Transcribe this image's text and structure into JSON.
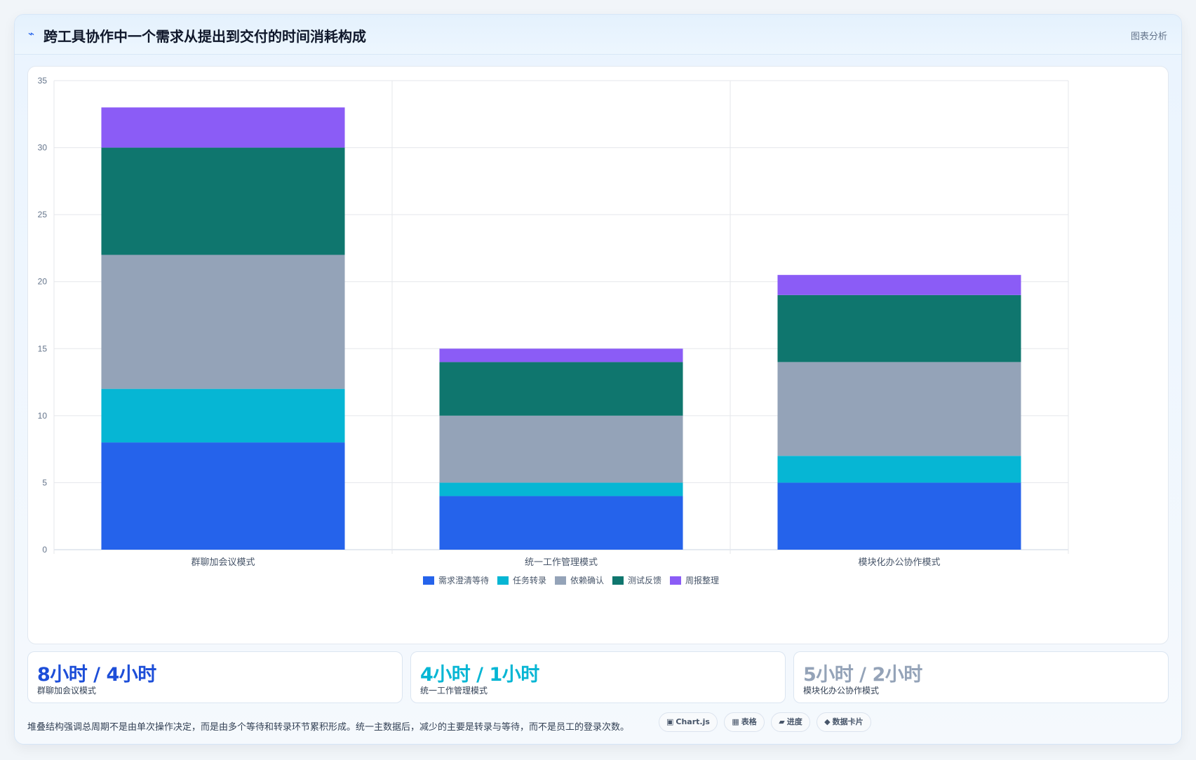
{
  "header": {
    "icon": "lightning-icon",
    "title": "跨工具协作中一个需求从提出到交付的时间消耗构成",
    "tag": "图表分析"
  },
  "chart_data": {
    "type": "bar",
    "stacked": true,
    "categories": [
      "群聊加会议模式",
      "统一工作管理模式",
      "模块化办公协作模式"
    ],
    "series": [
      {
        "name": "需求澄清等待",
        "color": "#2563eb",
        "values": [
          8,
          4,
          5
        ]
      },
      {
        "name": "任务转录",
        "color": "#06b6d4",
        "values": [
          4,
          1,
          2
        ]
      },
      {
        "name": "依赖确认",
        "color": "#94a3b8",
        "values": [
          10,
          5,
          7
        ]
      },
      {
        "name": "测试反馈",
        "color": "#0f766e",
        "values": [
          8,
          4,
          5
        ]
      },
      {
        "name": "周报整理",
        "color": "#8b5cf6",
        "values": [
          3,
          1,
          1.5
        ]
      }
    ],
    "ylim": [
      0,
      35
    ],
    "yticks": [
      0,
      5,
      10,
      15,
      20,
      25,
      30,
      35
    ],
    "grid": true,
    "legend": "bottom",
    "xlabel": "",
    "ylabel": "",
    "title": ""
  },
  "stats": [
    {
      "value": "8小时 / 4小时",
      "label": "群聊加会议模式",
      "color": "#1d4ed8"
    },
    {
      "value": "4小时 / 1小时",
      "label": "统一工作管理模式",
      "color": "#06b6d4"
    },
    {
      "value": "5小时 / 2小时",
      "label": "模块化办公协作模式",
      "color": "#94a3b8"
    }
  ],
  "footnote": "堆叠结构强调总周期不是由单次操作决定，而是由多个等待和转录环节累积形成。统一主数据后，减少的主要是转录与等待，而不是员工的登录次数。",
  "chips": [
    {
      "icon": "▣",
      "icon_name": "chart-icon",
      "label": "Chart.js"
    },
    {
      "icon": "▦",
      "icon_name": "table-icon",
      "label": "表格"
    },
    {
      "icon": "▰",
      "icon_name": "progress-icon",
      "label": "进度"
    },
    {
      "icon": "◆",
      "icon_name": "diamond-icon",
      "label": "数据卡片"
    }
  ]
}
